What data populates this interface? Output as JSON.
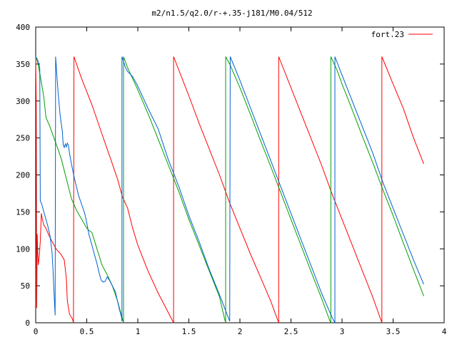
{
  "chart_data": {
    "type": "line",
    "title": "m2/n1.5/q2.0/r-+.35-j181/M0.04/512",
    "xlabel": "",
    "ylabel": "",
    "xlim": [
      0,
      4
    ],
    "ylim": [
      0,
      400
    ],
    "xticks": [
      "0",
      "0.5",
      "1",
      "1.5",
      "2",
      "2.5",
      "3",
      "3.5",
      "4"
    ],
    "xtick_values": [
      0,
      0.5,
      1,
      1.5,
      2,
      2.5,
      3,
      3.5,
      4
    ],
    "yticks": [
      "0",
      "50",
      "100",
      "150",
      "200",
      "250",
      "300",
      "350",
      "400"
    ],
    "ytick_values": [
      0,
      50,
      100,
      150,
      200,
      250,
      300,
      350,
      400
    ],
    "grid": false,
    "legend": {
      "entries": [
        "fort.23"
      ],
      "placement": "top-right"
    },
    "series": [
      {
        "name": "fort.23",
        "color": "#ff0000",
        "points": [
          [
            0.0,
            360
          ],
          [
            0.005,
            300
          ],
          [
            0.01,
            20
          ],
          [
            0.015,
            120
          ],
          [
            0.02,
            95
          ],
          [
            0.025,
            78
          ],
          [
            0.035,
            90
          ],
          [
            0.045,
            110
          ],
          [
            0.055,
            148
          ],
          [
            0.065,
            140
          ],
          [
            0.08,
            132
          ],
          [
            0.1,
            128
          ],
          [
            0.13,
            118
          ],
          [
            0.16,
            110
          ],
          [
            0.2,
            100
          ],
          [
            0.25,
            92
          ],
          [
            0.28,
            85
          ],
          [
            0.3,
            60
          ],
          [
            0.31,
            30
          ],
          [
            0.33,
            12
          ],
          [
            0.36,
            5
          ],
          [
            0.37,
            0
          ],
          [
            0.375,
            360
          ],
          [
            0.45,
            330
          ],
          [
            0.55,
            295
          ],
          [
            0.65,
            255
          ],
          [
            0.75,
            215
          ],
          [
            0.8,
            195
          ],
          [
            0.85,
            170
          ],
          [
            0.9,
            155
          ],
          [
            0.95,
            128
          ],
          [
            1.0,
            105
          ],
          [
            1.1,
            70
          ],
          [
            1.2,
            40
          ],
          [
            1.35,
            0
          ],
          [
            1.35,
            360
          ],
          [
            1.5,
            307
          ],
          [
            1.6,
            270
          ],
          [
            1.7,
            235
          ],
          [
            1.8,
            200
          ],
          [
            1.9,
            162
          ],
          [
            2.0,
            128
          ],
          [
            2.1,
            94
          ],
          [
            2.2,
            62
          ],
          [
            2.3,
            30
          ],
          [
            2.38,
            0
          ],
          [
            2.38,
            360
          ],
          [
            2.5,
            318
          ],
          [
            2.6,
            283
          ],
          [
            2.7,
            248
          ],
          [
            2.8,
            213
          ],
          [
            2.9,
            175
          ],
          [
            3.0,
            140
          ],
          [
            3.1,
            105
          ],
          [
            3.2,
            70
          ],
          [
            3.3,
            35
          ],
          [
            3.39,
            0
          ],
          [
            3.39,
            360
          ],
          [
            3.5,
            323
          ],
          [
            3.6,
            290
          ],
          [
            3.7,
            250
          ],
          [
            3.8,
            215
          ]
        ]
      },
      {
        "name": "",
        "color": "#00a000",
        "points": [
          [
            0.0,
            360
          ],
          [
            0.01,
            356
          ],
          [
            0.02,
            352
          ],
          [
            0.03,
            345
          ],
          [
            0.05,
            330
          ],
          [
            0.08,
            305
          ],
          [
            0.1,
            278
          ],
          [
            0.14,
            265
          ],
          [
            0.2,
            242
          ],
          [
            0.25,
            222
          ],
          [
            0.3,
            195
          ],
          [
            0.35,
            168
          ],
          [
            0.4,
            152
          ],
          [
            0.45,
            140
          ],
          [
            0.5,
            128
          ],
          [
            0.52,
            125
          ],
          [
            0.55,
            122
          ],
          [
            0.6,
            100
          ],
          [
            0.65,
            78
          ],
          [
            0.7,
            65
          ],
          [
            0.75,
            50
          ],
          [
            0.8,
            30
          ],
          [
            0.85,
            5
          ],
          [
            0.86,
            0
          ],
          [
            0.86,
            360
          ],
          [
            0.9,
            345
          ],
          [
            1.0,
            315
          ],
          [
            1.1,
            283
          ],
          [
            1.2,
            248
          ],
          [
            1.3,
            213
          ],
          [
            1.4,
            178
          ],
          [
            1.5,
            140
          ],
          [
            1.6,
            105
          ],
          [
            1.7,
            70
          ],
          [
            1.8,
            35
          ],
          [
            1.85,
            5
          ],
          [
            1.86,
            0
          ],
          [
            1.86,
            360
          ],
          [
            1.9,
            350
          ],
          [
            2.0,
            318
          ],
          [
            2.1,
            283
          ],
          [
            2.2,
            247
          ],
          [
            2.3,
            212
          ],
          [
            2.4,
            176
          ],
          [
            2.5,
            140
          ],
          [
            2.6,
            104
          ],
          [
            2.7,
            68
          ],
          [
            2.8,
            33
          ],
          [
            2.88,
            3
          ],
          [
            2.89,
            0
          ],
          [
            2.89,
            360
          ],
          [
            2.95,
            342
          ],
          [
            3.0,
            323
          ],
          [
            3.1,
            288
          ],
          [
            3.2,
            252
          ],
          [
            3.3,
            217
          ],
          [
            3.4,
            180
          ],
          [
            3.5,
            145
          ],
          [
            3.6,
            108
          ],
          [
            3.7,
            72
          ],
          [
            3.8,
            36
          ]
        ]
      },
      {
        "name": "",
        "color": "#0060d0",
        "points": [
          [
            0.0,
            360
          ],
          [
            0.01,
            358
          ],
          [
            0.02,
            355
          ],
          [
            0.03,
            350
          ],
          [
            0.04,
            345
          ],
          [
            0.045,
            165
          ],
          [
            0.06,
            160
          ],
          [
            0.08,
            150
          ],
          [
            0.1,
            140
          ],
          [
            0.12,
            130
          ],
          [
            0.14,
            118
          ],
          [
            0.16,
            95
          ],
          [
            0.17,
            70
          ],
          [
            0.18,
            40
          ],
          [
            0.19,
            10
          ],
          [
            0.195,
            360
          ],
          [
            0.21,
            330
          ],
          [
            0.22,
            310
          ],
          [
            0.24,
            280
          ],
          [
            0.26,
            260
          ],
          [
            0.27,
            240
          ],
          [
            0.28,
            237
          ],
          [
            0.29,
            242
          ],
          [
            0.3,
            238
          ],
          [
            0.31,
            243
          ],
          [
            0.32,
            240
          ],
          [
            0.33,
            230
          ],
          [
            0.35,
            215
          ],
          [
            0.38,
            195
          ],
          [
            0.42,
            172
          ],
          [
            0.45,
            160
          ],
          [
            0.48,
            148
          ],
          [
            0.5,
            135
          ],
          [
            0.52,
            120
          ],
          [
            0.55,
            105
          ],
          [
            0.58,
            90
          ],
          [
            0.6,
            80
          ],
          [
            0.62,
            68
          ],
          [
            0.64,
            58
          ],
          [
            0.66,
            55
          ],
          [
            0.68,
            56
          ],
          [
            0.7,
            62
          ],
          [
            0.72,
            58
          ],
          [
            0.75,
            50
          ],
          [
            0.78,
            42
          ],
          [
            0.8,
            30
          ],
          [
            0.82,
            18
          ],
          [
            0.84,
            8
          ],
          [
            0.845,
            2
          ],
          [
            0.845,
            360
          ],
          [
            0.88,
            345
          ],
          [
            0.9,
            340
          ],
          [
            0.95,
            333
          ],
          [
            1.0,
            320
          ],
          [
            1.05,
            305
          ],
          [
            1.1,
            290
          ],
          [
            1.2,
            262
          ],
          [
            1.3,
            220
          ],
          [
            1.4,
            185
          ],
          [
            1.5,
            145
          ],
          [
            1.6,
            110
          ],
          [
            1.7,
            72
          ],
          [
            1.8,
            38
          ],
          [
            1.9,
            2
          ],
          [
            1.905,
            360
          ],
          [
            2.0,
            328
          ],
          [
            2.1,
            292
          ],
          [
            2.2,
            256
          ],
          [
            2.3,
            220
          ],
          [
            2.4,
            184
          ],
          [
            2.5,
            148
          ],
          [
            2.6,
            112
          ],
          [
            2.7,
            76
          ],
          [
            2.8,
            40
          ],
          [
            2.9,
            8
          ],
          [
            2.93,
            0
          ],
          [
            2.93,
            360
          ],
          [
            3.0,
            335
          ],
          [
            3.1,
            300
          ],
          [
            3.2,
            265
          ],
          [
            3.3,
            230
          ],
          [
            3.4,
            190
          ],
          [
            3.5,
            155
          ],
          [
            3.6,
            120
          ],
          [
            3.7,
            85
          ],
          [
            3.8,
            52
          ]
        ]
      }
    ]
  }
}
